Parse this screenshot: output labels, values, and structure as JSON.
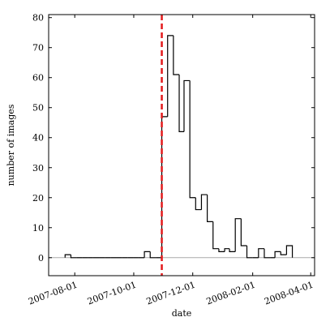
{
  "chart_data": {
    "type": "histogram",
    "xlabel": "date",
    "ylabel": "number of images",
    "bins": [
      "2007-07-22",
      "2007-07-28",
      "2007-08-03",
      "2007-08-09",
      "2007-08-15",
      "2007-08-20",
      "2007-08-26",
      "2007-09-01",
      "2007-09-07",
      "2007-09-13",
      "2007-09-19",
      "2007-09-25",
      "2007-10-01",
      "2007-10-06",
      "2007-10-12",
      "2007-10-18",
      "2007-10-24",
      "2007-10-30",
      "2007-11-05",
      "2007-11-11",
      "2007-11-17",
      "2007-11-22",
      "2007-11-28",
      "2007-12-04",
      "2007-12-10",
      "2007-12-16",
      "2007-12-22",
      "2007-12-28",
      "2008-01-03",
      "2008-01-08",
      "2008-01-14",
      "2008-01-20",
      "2008-01-26",
      "2008-02-01",
      "2008-02-07",
      "2008-02-13",
      "2008-02-19",
      "2008-02-24",
      "2008-03-01",
      "2008-03-07",
      "2008-03-13"
    ],
    "values": [
      1,
      0,
      0,
      0,
      0,
      0,
      0,
      0,
      0,
      0,
      0,
      0,
      0,
      0,
      2,
      0,
      0,
      47,
      74,
      61,
      42,
      59,
      20,
      16,
      21,
      12,
      3,
      2,
      3,
      2,
      13,
      4,
      0,
      0,
      3,
      0,
      0,
      2,
      1,
      4
    ],
    "color": "#000000",
    "reference_line": {
      "x": "2007-10-30",
      "color": "#e31a1c"
    },
    "zero_line": {
      "y": 0,
      "color": "#aaaaaa"
    },
    "xlim": [
      "2007-07-05",
      "2008-04-05"
    ],
    "xticks": [
      "2007-08-01",
      "2007-10-01",
      "2007-12-01",
      "2008-02-01",
      "2008-04-01"
    ],
    "ylim": [
      -6,
      81
    ],
    "yticks": [
      0,
      10,
      20,
      30,
      40,
      50,
      60,
      70,
      80
    ],
    "grid": false
  }
}
